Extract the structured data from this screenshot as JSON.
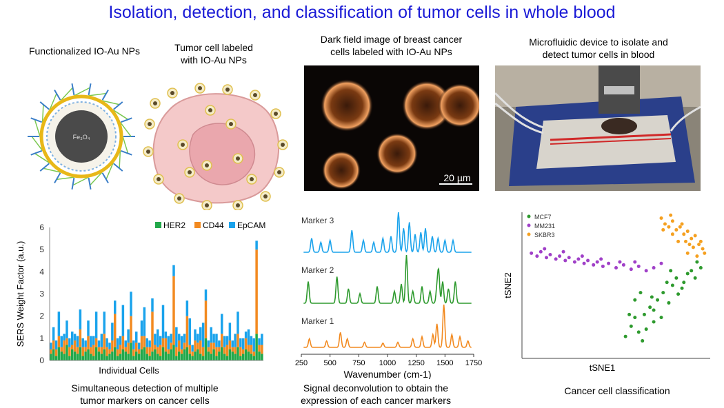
{
  "title": "Isolation, detection, and classification of tumor cells in whole blood",
  "panels": {
    "nanoparticle": {
      "caption": "Functionalized IO-Au NPs",
      "core_label": "Fe₃O₄"
    },
    "tumor_cell": {
      "caption_line1": "Tumor cell labeled",
      "caption_line2": "with IO-Au NPs"
    },
    "darkfield": {
      "caption_line1": "Dark field image of breast cancer",
      "caption_line2": "cells labeled with IO-Au NPs",
      "scale_bar": "20 µm"
    },
    "device": {
      "caption_line1": "Microfluidic device to isolate and",
      "caption_line2": "detect tumor cells in blood"
    },
    "sers_chart": {
      "caption_line1": "Simultaneous detection of multiple",
      "caption_line2": "tumor markers on cancer cells"
    },
    "spectra_chart": {
      "caption_line1": "Signal deconvolution to obtain the",
      "caption_line2": "expression of each cancer markers"
    },
    "tsne_chart": {
      "caption": "Cancer cell classification"
    }
  },
  "colors": {
    "title": "#1a1ad6",
    "her2": "#22a84a",
    "cd44": "#f28a20",
    "epcam": "#1aa3ec",
    "mcf7": "#2e9a2e",
    "mm231": "#a040c8",
    "skbr3": "#f5a020"
  },
  "chart_data": [
    {
      "type": "bar",
      "ylabel": "SERS Weight Factor (a.u.)",
      "xlabel": "Individual Cells",
      "ylim": [
        0,
        6
      ],
      "yticks": [
        0,
        1,
        2,
        3,
        4,
        5,
        6
      ],
      "legend": [
        "HER2",
        "CD44",
        "EpCAM"
      ],
      "legend_position": "top-right",
      "stacked": true,
      "series": [
        {
          "name": "HER2",
          "values": [
            0.3,
            0.5,
            0.2,
            0.6,
            0.4,
            0.3,
            0.7,
            0.2,
            0.5,
            0.4,
            0.3,
            0.6,
            0.2,
            0.4,
            0.5,
            0.3,
            0.2,
            0.6,
            0.4,
            0.3,
            0.5,
            0.2,
            0.3,
            0.4,
            0.6,
            0.2,
            0.3,
            0.5,
            0.4,
            0.3,
            0.8,
            0.2,
            0.4,
            0.3,
            0.5,
            0.6,
            0.3,
            0.2,
            0.4,
            0.5,
            0.3,
            0.2,
            0.6,
            0.4,
            0.3,
            0.5,
            0.7,
            0.2,
            0.4,
            0.3,
            0.5,
            0.6,
            0.3,
            0.2,
            0.4,
            0.5,
            0.3,
            0.2,
            1.0,
            0.4,
            0.3,
            0.5,
            0.2,
            0.4,
            0.6,
            0.3,
            0.2,
            0.5,
            0.4,
            0.3,
            0.6,
            0.2,
            0.3,
            0.5,
            0.4,
            0.3,
            0.2,
            1.2,
            0.4,
            0.3
          ]
        },
        {
          "name": "CD44",
          "values": [
            0.2,
            0.4,
            0.3,
            0.5,
            0.2,
            0.6,
            0.3,
            0.4,
            0.2,
            0.5,
            0.3,
            0.8,
            0.4,
            0.2,
            0.6,
            0.3,
            0.5,
            0.4,
            0.2,
            0.3,
            0.7,
            0.4,
            0.2,
            0.5,
            1.5,
            0.3,
            0.4,
            0.6,
            0.2,
            0.5,
            1.2,
            0.3,
            0.4,
            0.2,
            0.6,
            0.5,
            0.3,
            0.4,
            1.8,
            0.2,
            0.3,
            0.5,
            0.4,
            0.6,
            0.2,
            0.3,
            3.1,
            0.4,
            0.5,
            0.2,
            0.3,
            1.4,
            0.4,
            0.2,
            0.5,
            0.3,
            0.6,
            0.4,
            1.7,
            0.2,
            0.5,
            0.3,
            0.4,
            0.2,
            0.6,
            0.3,
            0.5,
            0.4,
            0.2,
            0.3,
            0.6,
            0.4,
            0.2,
            0.5,
            0.3,
            0.4,
            0.2,
            3.8,
            0.3,
            0.4
          ]
        },
        {
          "name": "EpCAM",
          "values": [
            0.3,
            0.6,
            0.4,
            1.1,
            0.5,
            0.3,
            0.8,
            0.4,
            0.6,
            0.3,
            0.5,
            0.9,
            0.4,
            0.3,
            0.7,
            0.5,
            0.4,
            1.2,
            0.3,
            0.6,
            1.0,
            0.4,
            0.3,
            0.8,
            0.6,
            0.5,
            0.4,
            1.4,
            0.3,
            0.6,
            1.1,
            0.4,
            0.5,
            0.3,
            0.7,
            1.3,
            0.4,
            0.3,
            0.6,
            0.5,
            0.8,
            0.4,
            1.5,
            0.3,
            0.6,
            0.4,
            0.5,
            0.9,
            0.3,
            0.6,
            0.4,
            0.7,
            1.2,
            0.3,
            0.5,
            0.4,
            0.6,
            1.1,
            0.5,
            0.3,
            0.7,
            0.4,
            0.6,
            0.3,
            0.9,
            0.5,
            0.4,
            0.8,
            0.3,
            0.6,
            1.0,
            0.4,
            0.5,
            0.3,
            0.7,
            0.4,
            0.6,
            0.4,
            0.3,
            0.5
          ]
        }
      ]
    },
    {
      "type": "line",
      "xlabel": "Wavenumber (cm-1)",
      "xlim": [
        250,
        1750
      ],
      "xticks": [
        250,
        500,
        750,
        1000,
        1250,
        1500,
        1750
      ],
      "grid": false,
      "series": [
        {
          "name": "Marker 3",
          "label": "Marker 3",
          "color": "#1aa3ec",
          "peaks": [
            [
              340,
              0.35
            ],
            [
              420,
              0.25
            ],
            [
              500,
              0.3
            ],
            [
              690,
              0.55
            ],
            [
              790,
              0.3
            ],
            [
              880,
              0.25
            ],
            [
              960,
              0.35
            ],
            [
              1030,
              0.4
            ],
            [
              1095,
              1.0
            ],
            [
              1140,
              0.6
            ],
            [
              1190,
              0.75
            ],
            [
              1240,
              0.45
            ],
            [
              1290,
              0.5
            ],
            [
              1330,
              0.6
            ],
            [
              1390,
              0.4
            ],
            [
              1440,
              0.35
            ],
            [
              1500,
              0.3
            ],
            [
              1570,
              0.3
            ]
          ]
        },
        {
          "name": "Marker 2",
          "label": "Marker 2",
          "color": "#2e9a2e",
          "peaks": [
            [
              310,
              0.45
            ],
            [
              560,
              0.55
            ],
            [
              660,
              0.3
            ],
            [
              760,
              0.2
            ],
            [
              910,
              0.35
            ],
            [
              1060,
              0.25
            ],
            [
              1120,
              0.4
            ],
            [
              1165,
              1.0
            ],
            [
              1220,
              0.25
            ],
            [
              1300,
              0.35
            ],
            [
              1370,
              0.25
            ],
            [
              1430,
              0.3
            ],
            [
              1445,
              0.65
            ],
            [
              1480,
              0.45
            ],
            [
              1530,
              0.3
            ],
            [
              1590,
              0.45
            ]
          ]
        },
        {
          "name": "Marker 1",
          "label": "Marker 1",
          "color": "#f28a20",
          "peaks": [
            [
              320,
              0.2
            ],
            [
              470,
              0.15
            ],
            [
              590,
              0.35
            ],
            [
              650,
              0.2
            ],
            [
              800,
              0.12
            ],
            [
              960,
              0.1
            ],
            [
              1090,
              0.12
            ],
            [
              1220,
              0.2
            ],
            [
              1300,
              0.25
            ],
            [
              1395,
              0.3
            ],
            [
              1430,
              0.55
            ],
            [
              1490,
              1.0
            ],
            [
              1560,
              0.3
            ],
            [
              1630,
              0.25
            ],
            [
              1700,
              0.15
            ]
          ]
        }
      ]
    },
    {
      "type": "scatter",
      "xlabel": "tSNE1",
      "ylabel": "tSNE2",
      "legend": [
        "MCF7",
        "MM231",
        "SKBR3"
      ],
      "legend_position": "top-left",
      "series": [
        {
          "name": "MCF7",
          "color": "#2e9a2e",
          "points": [
            [
              0.55,
              0.15
            ],
            [
              0.58,
              0.22
            ],
            [
              0.6,
              0.28
            ],
            [
              0.62,
              0.18
            ],
            [
              0.65,
              0.3
            ],
            [
              0.68,
              0.35
            ],
            [
              0.7,
              0.25
            ],
            [
              0.72,
              0.4
            ],
            [
              0.75,
              0.45
            ],
            [
              0.78,
              0.38
            ],
            [
              0.8,
              0.5
            ],
            [
              0.82,
              0.55
            ],
            [
              0.85,
              0.48
            ],
            [
              0.88,
              0.58
            ],
            [
              0.9,
              0.6
            ],
            [
              0.92,
              0.55
            ],
            [
              0.95,
              0.62
            ],
            [
              0.6,
              0.4
            ],
            [
              0.63,
              0.45
            ],
            [
              0.66,
              0.2
            ],
            [
              0.7,
              0.33
            ],
            [
              0.74,
              0.28
            ],
            [
              0.77,
              0.52
            ],
            [
              0.86,
              0.52
            ],
            [
              0.57,
              0.3
            ],
            [
              0.64,
              0.12
            ],
            [
              0.69,
              0.42
            ],
            [
              0.83,
              0.44
            ],
            [
              0.93,
              0.66
            ],
            [
              0.79,
              0.6
            ]
          ]
        },
        {
          "name": "MM231",
          "color": "#a040c8",
          "points": [
            [
              0.05,
              0.72
            ],
            [
              0.08,
              0.7
            ],
            [
              0.1,
              0.73
            ],
            [
              0.13,
              0.69
            ],
            [
              0.15,
              0.71
            ],
            [
              0.18,
              0.68
            ],
            [
              0.2,
              0.7
            ],
            [
              0.23,
              0.67
            ],
            [
              0.25,
              0.69
            ],
            [
              0.28,
              0.66
            ],
            [
              0.3,
              0.68
            ],
            [
              0.33,
              0.65
            ],
            [
              0.35,
              0.67
            ],
            [
              0.38,
              0.64
            ],
            [
              0.4,
              0.66
            ],
            [
              0.43,
              0.63
            ],
            [
              0.46,
              0.65
            ],
            [
              0.5,
              0.62
            ],
            [
              0.54,
              0.64
            ],
            [
              0.58,
              0.61
            ],
            [
              0.62,
              0.63
            ],
            [
              0.66,
              0.6
            ],
            [
              0.7,
              0.62
            ],
            [
              0.12,
              0.75
            ],
            [
              0.22,
              0.73
            ],
            [
              0.32,
              0.7
            ],
            [
              0.42,
              0.68
            ],
            [
              0.52,
              0.66
            ],
            [
              0.6,
              0.66
            ],
            [
              0.74,
              0.65
            ]
          ]
        },
        {
          "name": "SKBR3",
          "color": "#f5a020",
          "points": [
            [
              0.74,
              0.96
            ],
            [
              0.76,
              0.92
            ],
            [
              0.78,
              0.9
            ],
            [
              0.8,
              0.94
            ],
            [
              0.82,
              0.88
            ],
            [
              0.84,
              0.9
            ],
            [
              0.86,
              0.85
            ],
            [
              0.88,
              0.87
            ],
            [
              0.9,
              0.82
            ],
            [
              0.92,
              0.84
            ],
            [
              0.94,
              0.78
            ],
            [
              0.96,
              0.75
            ],
            [
              0.97,
              0.72
            ],
            [
              0.85,
              0.92
            ],
            [
              0.89,
              0.78
            ],
            [
              0.91,
              0.76
            ],
            [
              0.93,
              0.7
            ],
            [
              0.8,
              0.85
            ],
            [
              0.83,
              0.8
            ],
            [
              0.87,
              0.8
            ],
            [
              0.95,
              0.8
            ],
            [
              0.79,
              0.98
            ],
            [
              0.75,
              0.88
            ],
            [
              0.88,
              0.72
            ]
          ]
        }
      ]
    }
  ]
}
